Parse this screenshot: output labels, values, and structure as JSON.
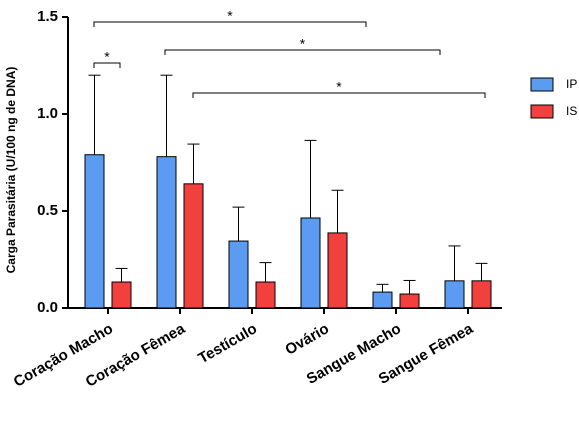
{
  "chart_data": {
    "type": "bar",
    "y_label": "Carga Parasitária  (U/100 ng de DNA)",
    "categories": [
      "Coração Macho",
      "Coração Fêmea",
      "Testículo",
      "Ovário",
      "Sangue Macho",
      "Sangue Fêmea"
    ],
    "series": [
      {
        "name": "IP",
        "color": "#5b9cf2",
        "values": [
          0.79,
          0.78,
          0.345,
          0.464,
          0.082,
          0.14
        ],
        "errors": [
          0.41,
          0.42,
          0.175,
          0.4,
          0.04,
          0.18
        ]
      },
      {
        "name": "IS",
        "color": "#f2403f",
        "values": [
          0.134,
          0.64,
          0.134,
          0.387,
          0.072,
          0.14
        ],
        "errors": [
          0.07,
          0.205,
          0.1,
          0.22,
          0.07,
          0.09
        ]
      }
    ],
    "ylim": [
      0,
      1.5
    ],
    "yticks": [
      {
        "value": 0,
        "label": "0.0"
      },
      {
        "value": 0.5,
        "label": "0.5"
      },
      {
        "value": 1,
        "label": "1.0"
      },
      {
        "value": 1.5,
        "label": "1.5"
      }
    ],
    "annotations": [
      "*",
      "*",
      "*",
      "*"
    ]
  }
}
